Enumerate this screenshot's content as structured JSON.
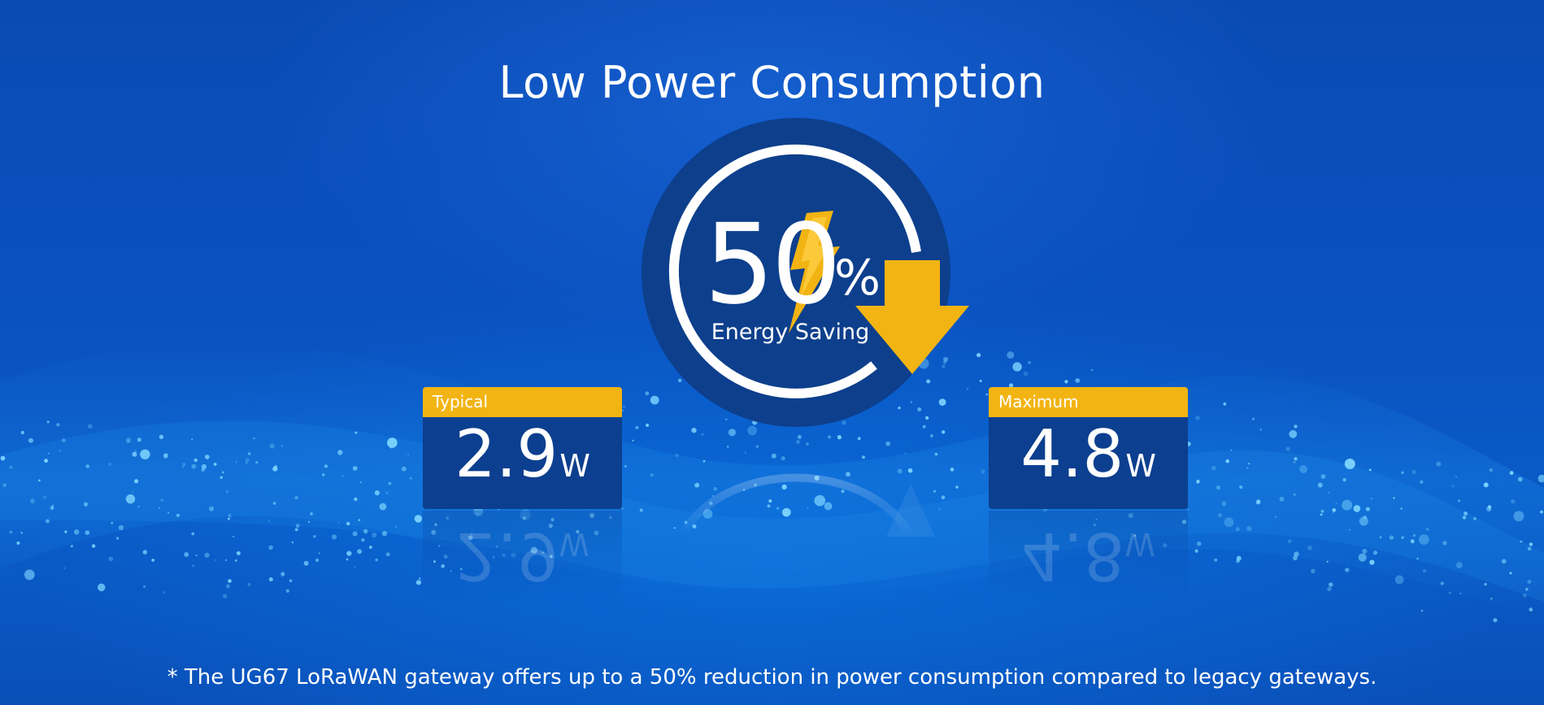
{
  "title": "Low Power Consumption",
  "badge": {
    "value": "50",
    "percent_sign": "%",
    "caption": "Energy Saving"
  },
  "cards": [
    {
      "label": "Typical",
      "value": "2.9",
      "unit": "W"
    },
    {
      "label": "Maximum",
      "value": "4.8",
      "unit": "W"
    }
  ],
  "footnote": "* The UG67 LoRaWAN gateway offers up to a 50% reduction in power consumption compared to legacy gateways.",
  "icons": [
    "lightning-bolt-icon",
    "down-arrow-icon"
  ],
  "colors": {
    "background": "#0a4fb8",
    "accent_yellow": "#f2b413",
    "card_body": "#0c3f8f",
    "badge_circle": "#0d3f8c",
    "text": "#ffffff"
  }
}
